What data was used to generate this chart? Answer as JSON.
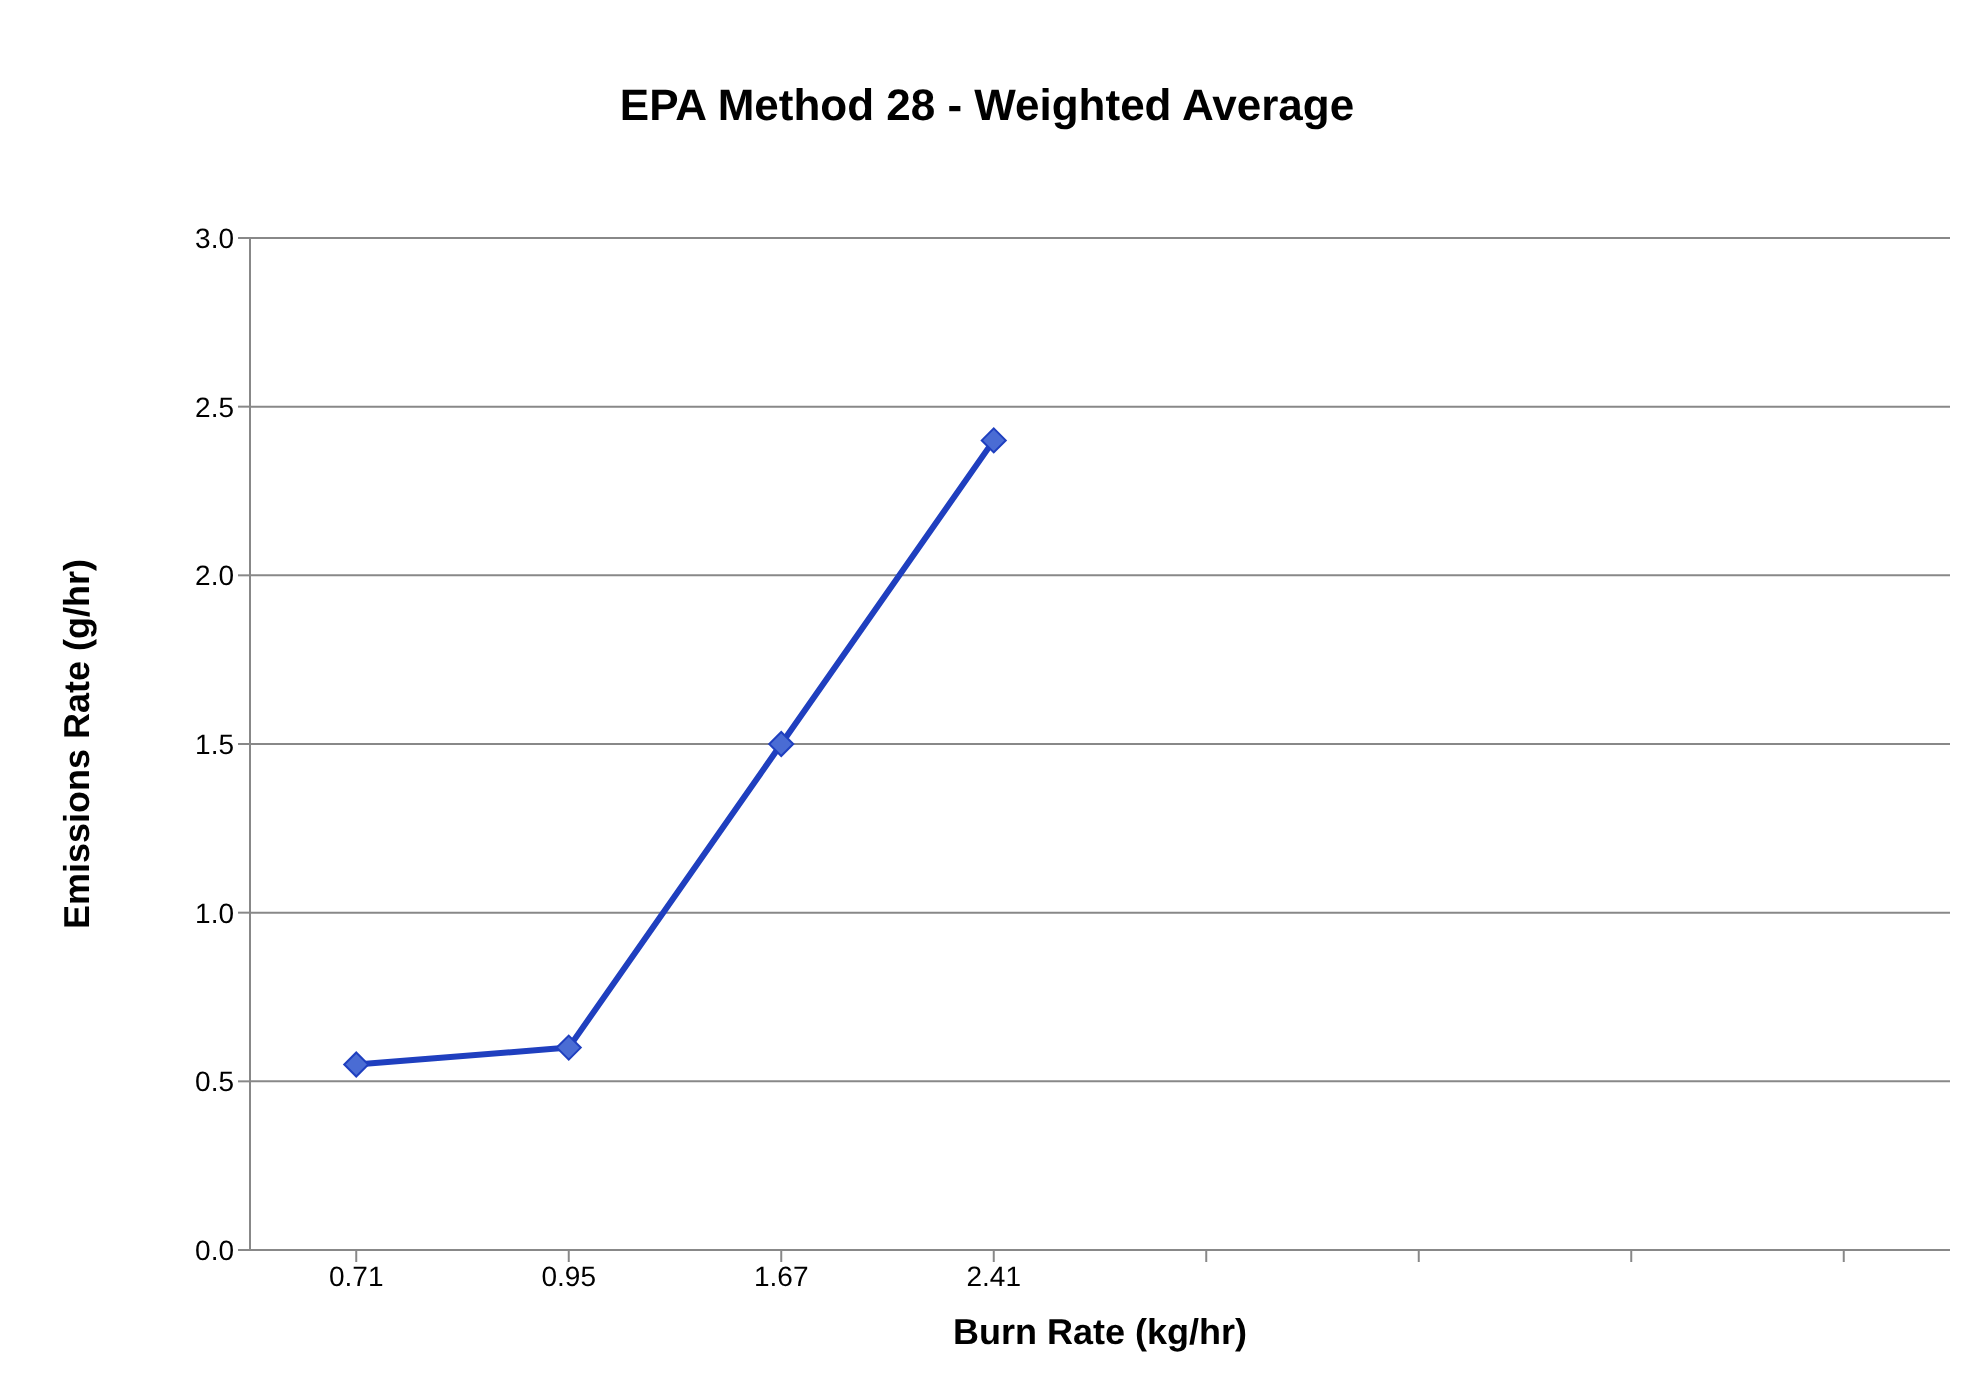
{
  "chart_data": {
    "type": "line",
    "title": "EPA Method 28 - Weighted Average",
    "xlabel": "Burn Rate (kg/hr)",
    "ylabel": "Emissions Rate (g/hr)",
    "categories": [
      "0.71",
      "0.95",
      "1.67",
      "2.41",
      null,
      null,
      null,
      null
    ],
    "series": [
      {
        "color": "#1f3fbf",
        "values": [
          0.55,
          0.6,
          1.5,
          2.4,
          null,
          null,
          null,
          null
        ]
      }
    ],
    "ylim": [
      0,
      3
    ],
    "yticks": [
      {
        "value": 0,
        "label": "0.0"
      },
      {
        "value": 0.5,
        "label": "0.5"
      },
      {
        "value": 1,
        "label": "1.0"
      },
      {
        "value": 1.5,
        "label": "1.5"
      },
      {
        "value": 2,
        "label": "2.0"
      },
      {
        "value": 2.5,
        "label": "2.5"
      },
      {
        "value": 3,
        "label": "3.0"
      }
    ],
    "grid": "y",
    "marker": "diamond",
    "line_style": "solid"
  }
}
